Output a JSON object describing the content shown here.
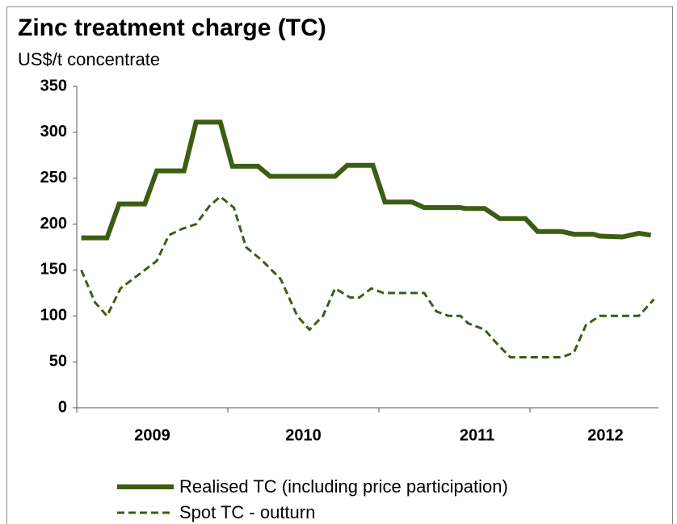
{
  "chart_data": {
    "type": "line",
    "title": "Zinc treatment charge (TC)",
    "subtitle": "US$/t concentrate",
    "xlim": [
      2009.0,
      2012.85
    ],
    "xticks": [
      {
        "value": 2009.5,
        "label": "2009"
      },
      {
        "value": 2010.5,
        "label": "2010"
      },
      {
        "value": 2011.65,
        "label": "2011"
      },
      {
        "value": 2012.5,
        "label": "2012"
      }
    ],
    "ylim": [
      0,
      350
    ],
    "yticks": [
      0,
      50,
      100,
      150,
      200,
      250,
      300,
      350
    ],
    "legend": "bottom",
    "series": [
      {
        "name": "Realised TC (including price participation)",
        "color": "#3b5e12",
        "style": "solid",
        "x": [
          2009.03,
          2009.2,
          2009.28,
          2009.45,
          2009.53,
          2009.71,
          2009.79,
          2009.95,
          2010.03,
          2010.2,
          2010.28,
          2010.71,
          2010.79,
          2010.96,
          2011.04,
          2011.22,
          2011.3,
          2011.54,
          2011.57,
          2011.7,
          2011.8,
          2011.97,
          2012.05,
          2012.21,
          2012.29,
          2012.42,
          2012.46,
          2012.61,
          2012.72,
          2012.8
        ],
        "values": [
          185,
          185,
          222,
          222,
          258,
          258,
          311,
          311,
          263,
          263,
          252,
          252,
          264,
          264,
          224,
          224,
          218,
          218,
          217,
          217,
          206,
          206,
          192,
          192,
          189,
          189,
          187,
          186,
          190,
          188
        ]
      },
      {
        "name": "Spot TC - outturn",
        "color": "#3b5e12",
        "style": "dashed",
        "x": [
          2009.03,
          2009.12,
          2009.2,
          2009.29,
          2009.41,
          2009.53,
          2009.61,
          2009.7,
          2009.79,
          2009.88,
          2009.95,
          2010.04,
          2010.12,
          2010.23,
          2010.35,
          2010.46,
          2010.54,
          2010.63,
          2010.71,
          2010.81,
          2010.87,
          2010.95,
          2011.03,
          2011.3,
          2011.38,
          2011.46,
          2011.54,
          2011.59,
          2011.7,
          2011.78,
          2011.87,
          2012.21,
          2012.29,
          2012.37,
          2012.46,
          2012.72,
          2012.82
        ],
        "values": [
          150,
          115,
          100,
          130,
          145,
          160,
          188,
          195,
          200,
          220,
          230,
          218,
          175,
          160,
          140,
          100,
          85,
          100,
          130,
          120,
          120,
          130,
          125,
          125,
          105,
          100,
          100,
          92,
          85,
          70,
          55,
          55,
          60,
          90,
          100,
          100,
          118
        ]
      }
    ]
  }
}
